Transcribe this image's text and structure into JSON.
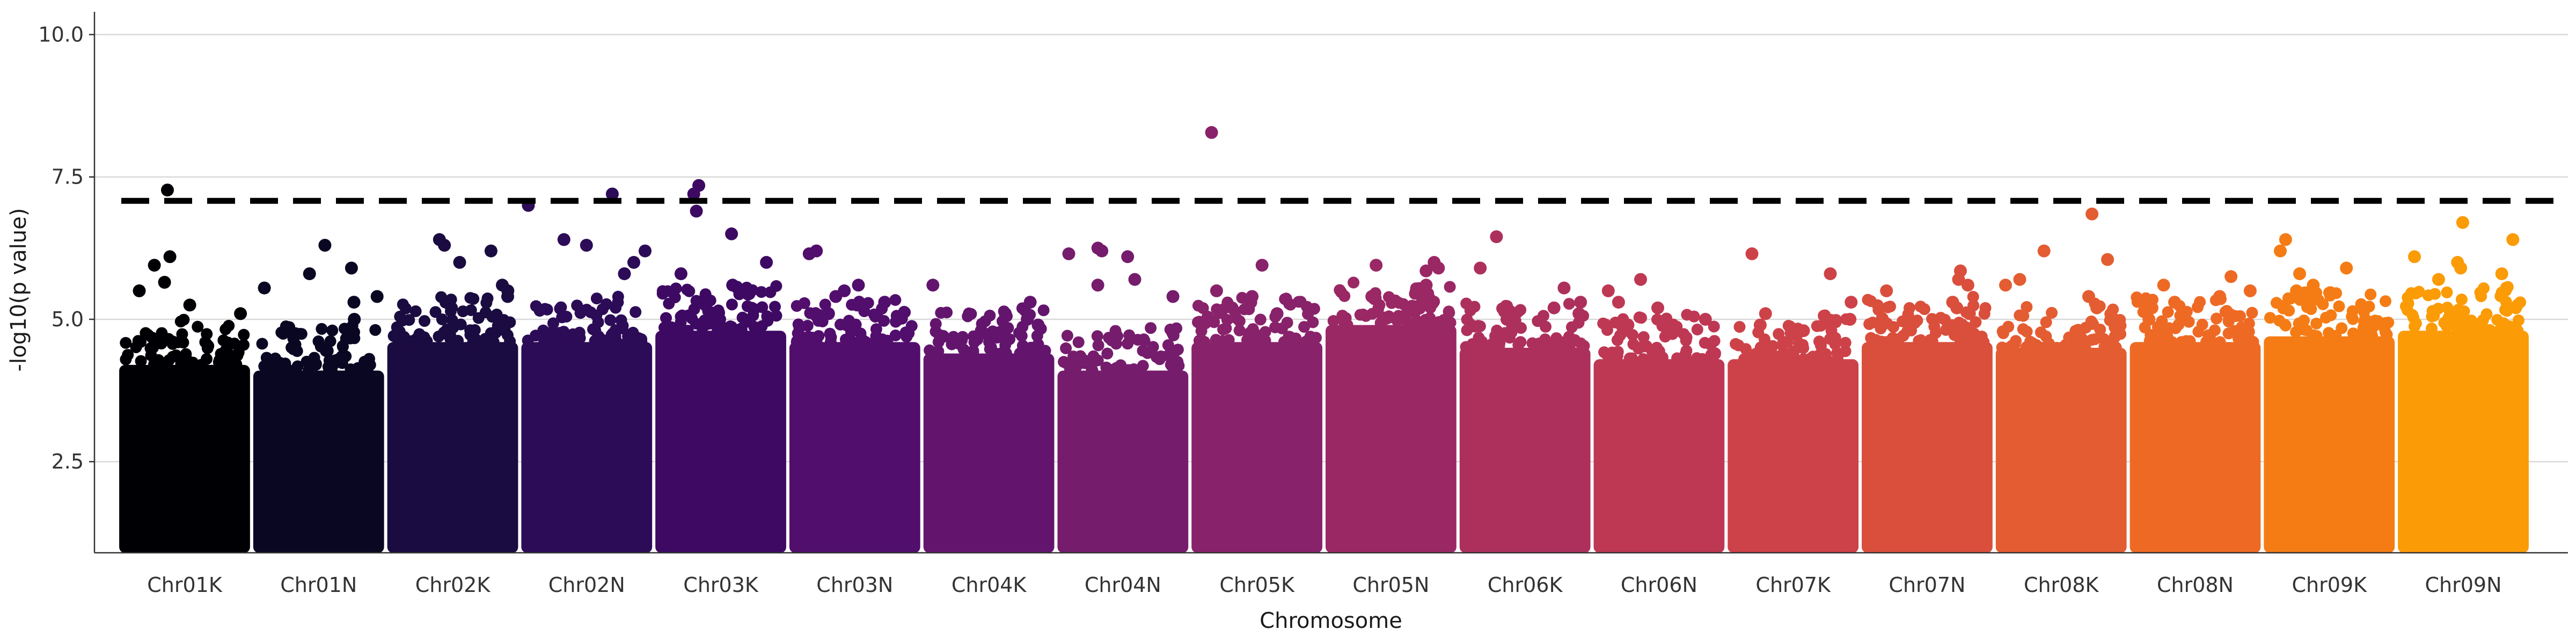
{
  "chart_data": {
    "type": "scatter",
    "subtype": "manhattan",
    "title": "",
    "xlabel": "Chromosome",
    "ylabel": "-log10(p value)",
    "ylim": [
      0.9,
      10.4
    ],
    "yticks": [
      2.5,
      5.0,
      7.5,
      10.0
    ],
    "ytick_labels": [
      "2.5",
      "5.0",
      "7.5",
      "10.0"
    ],
    "grid": "horizontal-major",
    "legend": "none",
    "significance_threshold": 7.08,
    "threshold_style": "black-dashed",
    "base_floor": 1.0,
    "colormap": "inferno",
    "categories": [
      "Chr01K",
      "Chr01N",
      "Chr02K",
      "Chr02N",
      "Chr03K",
      "Chr03N",
      "Chr04K",
      "Chr04N",
      "Chr05K",
      "Chr05N",
      "Chr06K",
      "Chr06N",
      "Chr07K",
      "Chr07N",
      "Chr08K",
      "Chr08N",
      "Chr09K",
      "Chr09N"
    ],
    "series": [
      {
        "chrom": "Chr01K",
        "color": "#000004",
        "dense_top": 4.2,
        "peaks": [
          7.27,
          6.1,
          5.95,
          5.65,
          5.5,
          5.25,
          5.1
        ]
      },
      {
        "chrom": "Chr01N",
        "color": "#0a0722",
        "dense_top": 4.1,
        "peaks": [
          6.3,
          5.9,
          5.8,
          5.55,
          5.4,
          5.3,
          5.0
        ]
      },
      {
        "chrom": "Chr02K",
        "color": "#1a0b40",
        "dense_top": 4.6,
        "peaks": [
          6.4,
          6.3,
          6.2,
          6.0,
          5.6,
          5.5,
          5.4
        ]
      },
      {
        "chrom": "Chr02N",
        "color": "#2c0b57",
        "dense_top": 4.6,
        "peaks": [
          7.2,
          7.0,
          6.4,
          6.3,
          6.2,
          6.0,
          5.8
        ]
      },
      {
        "chrom": "Chr03K",
        "color": "#3e0963",
        "dense_top": 4.8,
        "peaks": [
          7.35,
          7.2,
          6.9,
          6.5,
          6.0,
          5.8,
          5.6
        ]
      },
      {
        "chrom": "Chr03N",
        "color": "#510e6c",
        "dense_top": 4.6,
        "peaks": [
          6.2,
          6.15,
          5.6,
          5.5,
          5.4,
          5.3,
          5.1
        ]
      },
      {
        "chrom": "Chr04K",
        "color": "#63156e",
        "dense_top": 4.4,
        "peaks": [
          5.6,
          5.3,
          5.1,
          5.0,
          4.9,
          4.8,
          4.7
        ]
      },
      {
        "chrom": "Chr04N",
        "color": "#751c6d",
        "dense_top": 4.1,
        "peaks": [
          6.25,
          6.2,
          6.15,
          6.1,
          5.7,
          5.6,
          5.4
        ]
      },
      {
        "chrom": "Chr05K",
        "color": "#88226a",
        "dense_top": 4.6,
        "peaks": [
          8.28,
          5.95,
          5.5,
          5.4,
          5.3,
          5.2,
          5.1
        ]
      },
      {
        "chrom": "Chr05N",
        "color": "#9a2865",
        "dense_top": 4.9,
        "peaks": [
          6.0,
          5.95,
          5.9,
          5.85,
          5.6,
          5.5,
          5.4
        ]
      },
      {
        "chrom": "Chr06K",
        "color": "#ad305c",
        "dense_top": 4.5,
        "peaks": [
          6.45,
          5.9,
          5.55,
          5.3,
          5.2,
          5.1,
          5.0
        ]
      },
      {
        "chrom": "Chr06N",
        "color": "#be3853",
        "dense_top": 4.3,
        "peaks": [
          5.7,
          5.5,
          5.3,
          5.2,
          5.0,
          4.9,
          4.8
        ]
      },
      {
        "chrom": "Chr07K",
        "color": "#cd4248",
        "dense_top": 4.3,
        "peaks": [
          6.15,
          5.8,
          5.3,
          5.1,
          5.0,
          4.9,
          4.8
        ]
      },
      {
        "chrom": "Chr07N",
        "color": "#da4e3c",
        "dense_top": 4.6,
        "peaks": [
          5.85,
          5.7,
          5.6,
          5.5,
          5.3,
          5.2,
          5.1
        ]
      },
      {
        "chrom": "Chr08K",
        "color": "#e45c31",
        "dense_top": 4.5,
        "peaks": [
          6.85,
          6.2,
          6.05,
          5.7,
          5.6,
          5.4,
          5.2
        ]
      },
      {
        "chrom": "Chr08N",
        "color": "#ee6a24",
        "dense_top": 4.6,
        "peaks": [
          5.75,
          5.6,
          5.5,
          5.4,
          5.3,
          5.2,
          5.0
        ]
      },
      {
        "chrom": "Chr09K",
        "color": "#f57c15",
        "dense_top": 4.7,
        "peaks": [
          6.4,
          6.2,
          5.9,
          5.8,
          5.6,
          5.5,
          5.3
        ]
      },
      {
        "chrom": "Chr09N",
        "color": "#fb9b06",
        "dense_top": 4.8,
        "peaks": [
          6.7,
          6.4,
          6.1,
          6.0,
          5.9,
          5.8,
          5.7
        ]
      }
    ]
  }
}
